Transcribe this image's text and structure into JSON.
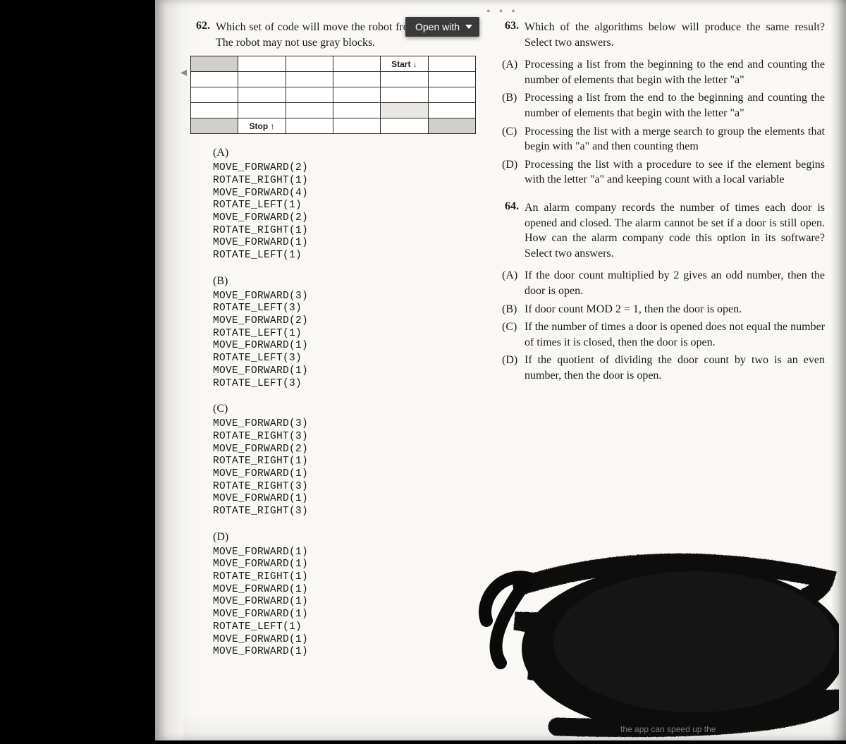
{
  "viewer": {
    "open_with": "Open with",
    "dots": "• • •"
  },
  "q62": {
    "number": "62.",
    "text": "Which set of code will move the robot from start to stop? The robot may not use gray blocks.",
    "grid": {
      "cols": 6,
      "rows": 5,
      "start_label": "Start ↓",
      "stop_label": "Stop ↑",
      "start_cell": [
        0,
        4
      ],
      "stop_cell": [
        4,
        1
      ],
      "gray_cells": [
        [
          0,
          0
        ],
        [
          4,
          0
        ],
        [
          4,
          5
        ]
      ],
      "lightgray_cells": [
        [
          3,
          4
        ]
      ]
    },
    "options": {
      "A": [
        "MOVE_FORWARD(2)",
        "ROTATE_RIGHT(1)",
        "MOVE_FORWARD(4)",
        "ROTATE_LEFT(1)",
        "MOVE_FORWARD(2)",
        "ROTATE_RIGHT(1)",
        "MOVE_FORWARD(1)",
        "ROTATE_LEFT(1)"
      ],
      "B": [
        "MOVE_FORWARD(3)",
        "ROTATE_LEFT(3)",
        "MOVE_FORWARD(2)",
        "ROTATE_LEFT(1)",
        "MOVE_FORWARD(1)",
        "ROTATE_LEFT(3)",
        "MOVE_FORWARD(1)",
        "ROTATE_LEFT(3)"
      ],
      "C": [
        "MOVE_FORWARD(3)",
        "ROTATE_RIGHT(3)",
        "MOVE_FORWARD(2)",
        "ROTATE_RIGHT(1)",
        "MOVE_FORWARD(1)",
        "ROTATE_RIGHT(3)",
        "MOVE_FORWARD(1)",
        "ROTATE_RIGHT(3)"
      ],
      "D": [
        "MOVE_FORWARD(1)",
        "MOVE_FORWARD(1)",
        "ROTATE_RIGHT(1)",
        "MOVE_FORWARD(1)",
        "MOVE_FORWARD(1)",
        "MOVE_FORWARD(1)",
        "ROTATE_LEFT(1)",
        "MOVE_FORWARD(1)",
        "MOVE_FORWARD(1)"
      ]
    }
  },
  "q63": {
    "number": "63.",
    "text": "Which of the algorithms below will produce the same result? Select two answers.",
    "answers": {
      "A": "Processing a list from the beginning to the end and counting the number of elements that begin with the letter \"a\"",
      "B": "Processing a list from the end to the begin­ning and counting the number of elements that begin with the letter \"a\"",
      "C": "Processing the list with a merge search to group the elements that begin with \"a\" and then counting them",
      "D": "Processing the list with a procedure to see if the element begins with the letter \"a\" and keeping count with a local variable"
    }
  },
  "q64": {
    "number": "64.",
    "text": "An alarm company records the number of times each door is opened and closed. The alarm cannot be set if a door is still open. How can the alarm company code this option in its software? Select two answers.",
    "answers": {
      "A": "If the door count multiplied by 2 gives an odd number, then the door is open.",
      "B": "If door count MOD 2 = 1, then the door is open.",
      "C": "If the number of times a door is opened does not equal the number of times it is closed, then the door is open.",
      "D": "If the quotient of dividing the door count by two is an even number, then the door is open."
    }
  },
  "style": {
    "page_bg": "#f9f8f5",
    "black": "#000000",
    "text": "#1b1b1b",
    "grid_border": "#2b2b2b",
    "gray_cell": "#cfcfcb",
    "lightgray_cell": "#e8e7e3",
    "open_with_bg": "#3a3a3a",
    "font_serif": "Georgia",
    "font_mono": "Courier New",
    "font_sans": "Arial",
    "q_fontsize": 16,
    "code_fontsize": 14.5
  }
}
